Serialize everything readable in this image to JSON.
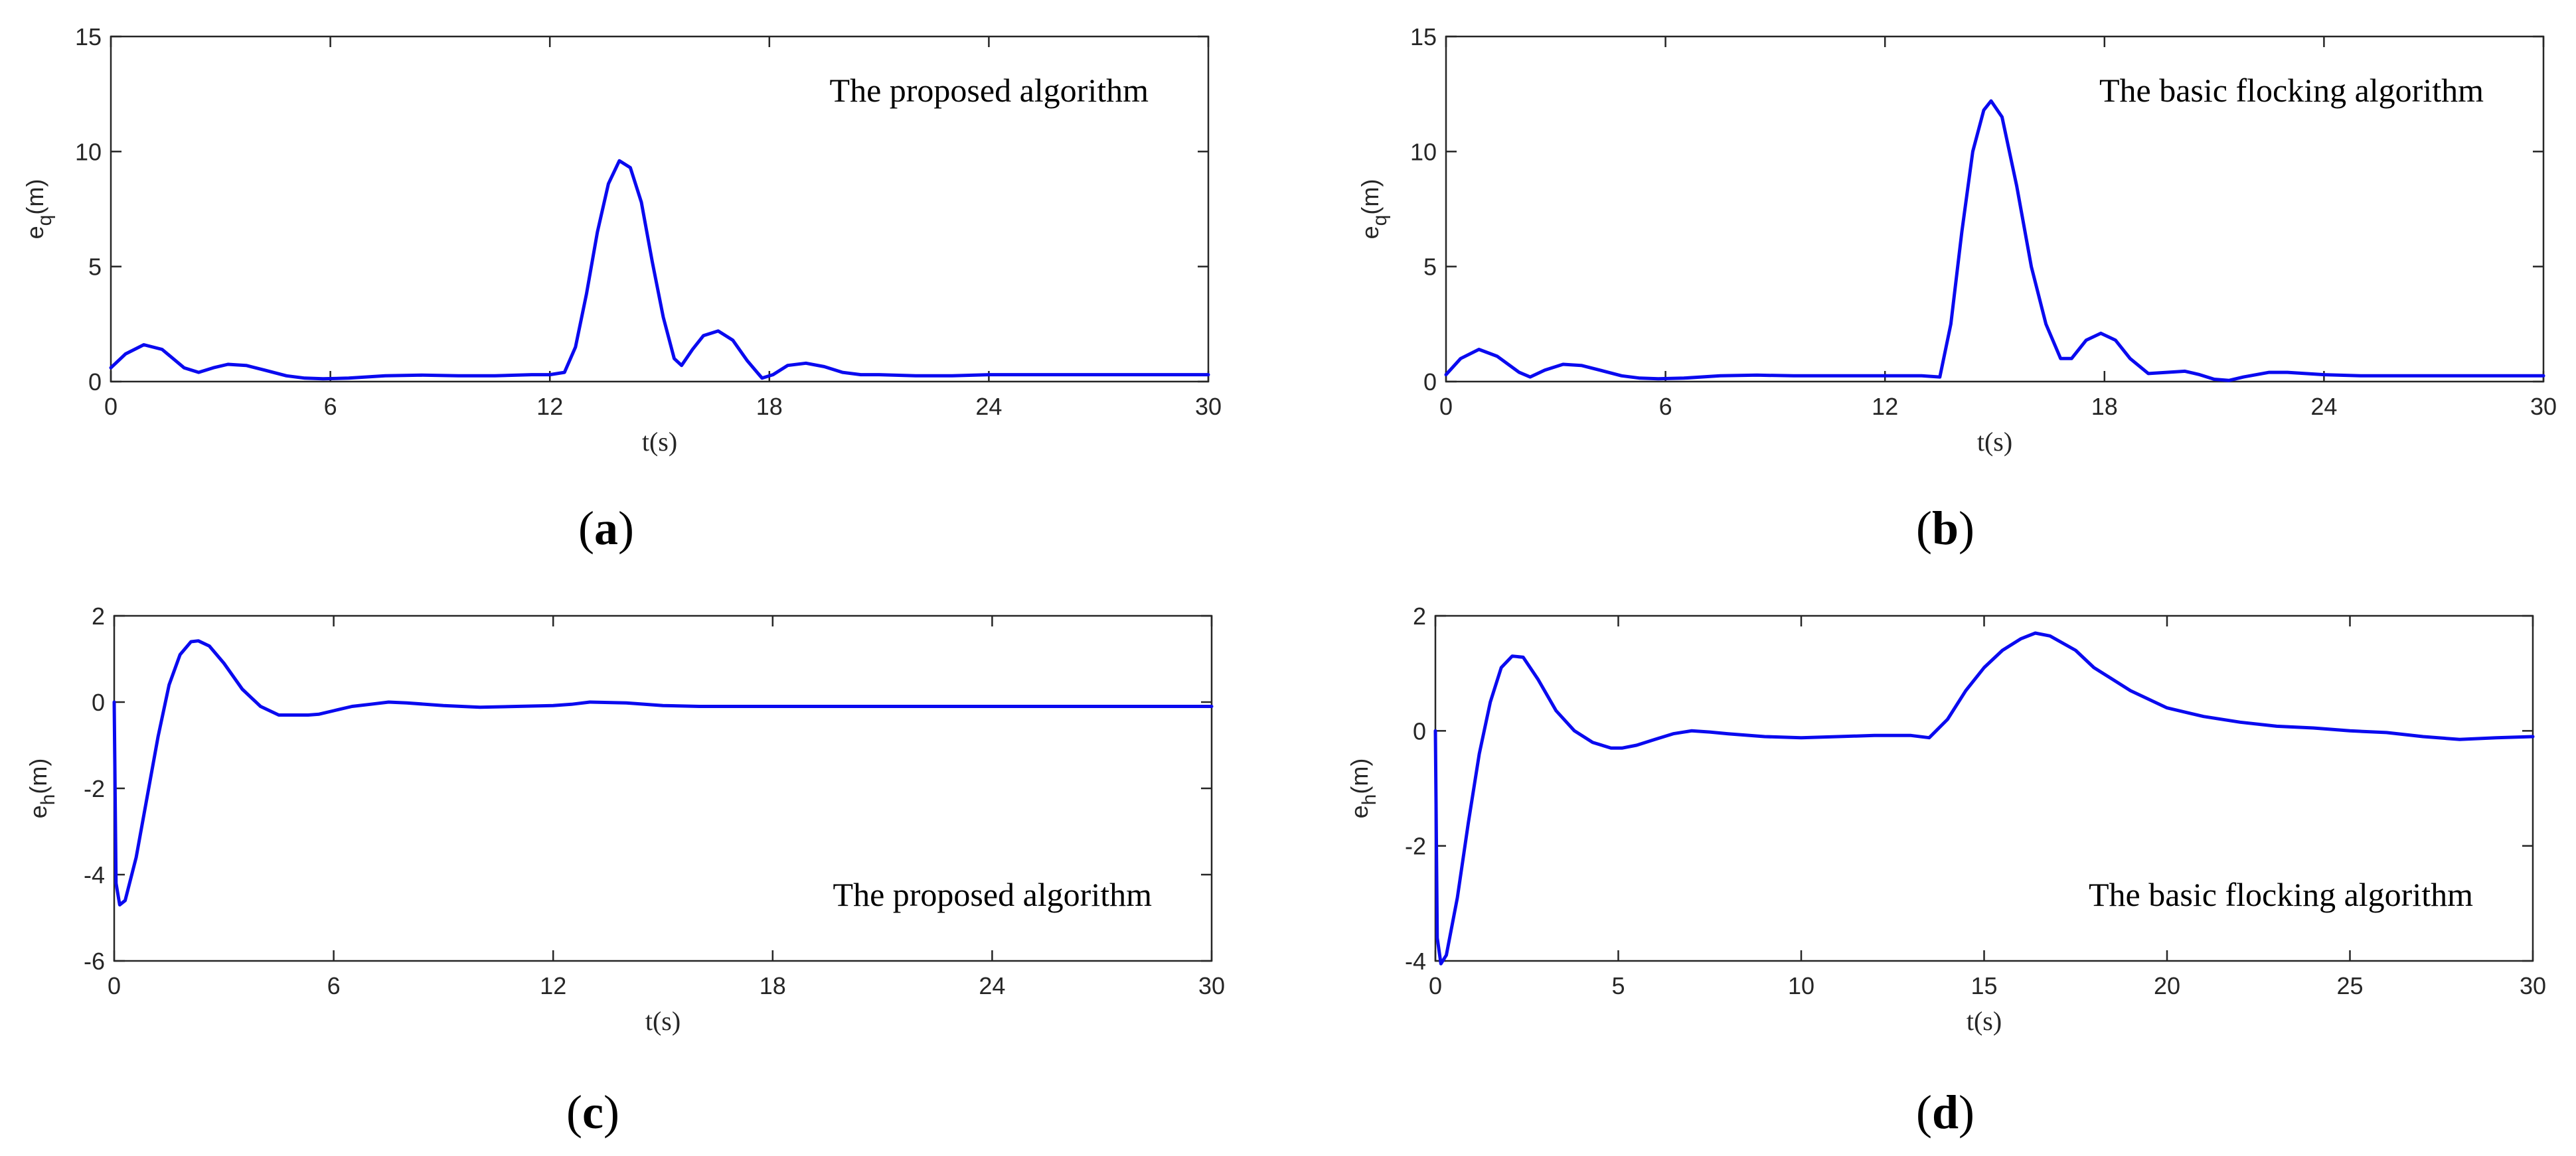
{
  "colors": {
    "series": "#0a0aef",
    "axes": "#262626",
    "background": "#ffffff"
  },
  "chart_data": [
    {
      "type": "line",
      "panel_label": "a",
      "annotation": "The proposed algorithm",
      "annotation_position": "top-right",
      "xlabel": "t(s)",
      "ylabel": {
        "base": "e",
        "sub": "q",
        "unit": "(m)"
      },
      "xlim": [
        0,
        30
      ],
      "ylim": [
        0,
        15
      ],
      "xticks": [
        0,
        6,
        12,
        18,
        24,
        30
      ],
      "yticks": [
        0,
        5,
        10,
        15
      ],
      "grid": false,
      "series": [
        {
          "x": [
            0,
            0.4,
            0.9,
            1.4,
            2.0,
            2.4,
            2.8,
            3.2,
            3.7,
            4.2,
            4.8,
            5.3,
            5.8,
            6.5,
            7.5,
            8.5,
            9.5,
            10.5,
            11.5,
            12.0,
            12.4,
            12.7,
            13.0,
            13.3,
            13.6,
            13.9,
            14.2,
            14.5,
            14.8,
            15.1,
            15.4,
            15.6,
            15.9,
            16.2,
            16.6,
            17.0,
            17.4,
            17.8,
            18.1,
            18.5,
            19.0,
            19.5,
            20.0,
            20.5,
            21.0,
            22.0,
            23.0,
            24.0,
            26.0,
            28.0,
            30.0
          ],
          "y": [
            0.6,
            1.2,
            1.6,
            1.4,
            0.6,
            0.4,
            0.6,
            0.75,
            0.7,
            0.5,
            0.25,
            0.15,
            0.12,
            0.15,
            0.25,
            0.28,
            0.25,
            0.25,
            0.3,
            0.3,
            0.4,
            1.5,
            3.8,
            6.5,
            8.6,
            9.6,
            9.3,
            7.8,
            5.2,
            2.8,
            1.0,
            0.7,
            1.4,
            2.0,
            2.2,
            1.8,
            0.9,
            0.15,
            0.3,
            0.7,
            0.8,
            0.65,
            0.4,
            0.3,
            0.3,
            0.25,
            0.25,
            0.3,
            0.3,
            0.3,
            0.3
          ]
        }
      ]
    },
    {
      "type": "line",
      "panel_label": "b",
      "annotation": "The basic flocking algorithm",
      "annotation_position": "top-right",
      "xlabel": "t(s)",
      "ylabel": {
        "base": "e",
        "sub": "q",
        "unit": "(m)"
      },
      "xlim": [
        0,
        30
      ],
      "ylim": [
        0,
        15
      ],
      "xticks": [
        0,
        6,
        12,
        18,
        24,
        30
      ],
      "yticks": [
        0,
        5,
        10,
        15
      ],
      "grid": false,
      "series": [
        {
          "x": [
            0,
            0.4,
            0.9,
            1.4,
            2.0,
            2.3,
            2.7,
            3.2,
            3.7,
            4.2,
            4.8,
            5.3,
            5.8,
            6.5,
            7.5,
            8.5,
            9.5,
            10.5,
            11.5,
            12.5,
            13.0,
            13.5,
            13.8,
            14.1,
            14.4,
            14.7,
            14.9,
            15.2,
            15.6,
            16.0,
            16.4,
            16.8,
            17.1,
            17.5,
            17.9,
            18.3,
            18.7,
            19.2,
            19.7,
            20.2,
            20.6,
            21.0,
            21.4,
            21.8,
            22.5,
            23.0,
            24.0,
            25.0,
            26.0,
            28.0,
            30.0
          ],
          "y": [
            0.3,
            1.0,
            1.4,
            1.1,
            0.4,
            0.2,
            0.5,
            0.75,
            0.7,
            0.5,
            0.25,
            0.15,
            0.12,
            0.15,
            0.25,
            0.28,
            0.25,
            0.25,
            0.25,
            0.25,
            0.25,
            0.2,
            2.5,
            6.5,
            10.0,
            11.8,
            12.2,
            11.5,
            8.5,
            5.0,
            2.5,
            1.0,
            1.0,
            1.8,
            2.1,
            1.8,
            1.0,
            0.35,
            0.4,
            0.45,
            0.3,
            0.1,
            0.05,
            0.2,
            0.4,
            0.4,
            0.3,
            0.25,
            0.25,
            0.25,
            0.25
          ]
        }
      ]
    },
    {
      "type": "line",
      "panel_label": "c",
      "annotation": "The proposed algorithm",
      "annotation_position": "bottom-right",
      "xlabel": "t(s)",
      "ylabel": {
        "base": "e",
        "sub": "h",
        "unit": "(m)"
      },
      "xlim": [
        0,
        30
      ],
      "ylim": [
        -6,
        2
      ],
      "xticks": [
        0,
        6,
        12,
        18,
        24,
        30
      ],
      "yticks": [
        -6,
        -4,
        -2,
        0,
        2
      ],
      "grid": false,
      "series": [
        {
          "x": [
            0,
            0.05,
            0.15,
            0.3,
            0.6,
            0.9,
            1.2,
            1.5,
            1.8,
            2.1,
            2.3,
            2.6,
            3.0,
            3.5,
            4.0,
            4.5,
            5.0,
            5.3,
            5.6,
            6.0,
            6.5,
            7.0,
            7.5,
            8.0,
            9.0,
            10.0,
            11.0,
            12.0,
            12.5,
            13.0,
            14.0,
            15.0,
            16.0,
            18.0,
            20.0,
            24.0,
            28.0,
            30.0
          ],
          "y": [
            0.0,
            -4.2,
            -4.7,
            -4.6,
            -3.6,
            -2.2,
            -0.8,
            0.4,
            1.1,
            1.4,
            1.42,
            1.3,
            0.9,
            0.3,
            -0.1,
            -0.3,
            -0.3,
            -0.3,
            -0.28,
            -0.2,
            -0.1,
            -0.05,
            0.0,
            -0.02,
            -0.08,
            -0.12,
            -0.1,
            -0.08,
            -0.05,
            0.0,
            -0.02,
            -0.08,
            -0.1,
            -0.1,
            -0.1,
            -0.1,
            -0.1,
            -0.1
          ]
        }
      ]
    },
    {
      "type": "line",
      "panel_label": "d",
      "annotation": "The basic flocking algorithm",
      "annotation_position": "bottom-right",
      "xlabel": "t(s)",
      "ylabel": {
        "base": "e",
        "sub": "h",
        "unit": "(m)"
      },
      "xlim": [
        0,
        30
      ],
      "ylim": [
        -4,
        2
      ],
      "xticks": [
        0,
        5,
        10,
        15,
        20,
        25,
        30
      ],
      "yticks": [
        -4,
        -2,
        0,
        2
      ],
      "grid": false,
      "series": [
        {
          "x": [
            0,
            0.05,
            0.15,
            0.3,
            0.6,
            0.9,
            1.2,
            1.5,
            1.8,
            2.1,
            2.4,
            2.8,
            3.3,
            3.8,
            4.3,
            4.8,
            5.1,
            5.5,
            6.0,
            6.5,
            7.0,
            7.5,
            8.0,
            9.0,
            10.0,
            11.0,
            12.0,
            13.0,
            13.5,
            14.0,
            14.5,
            15.0,
            15.5,
            16.0,
            16.4,
            16.8,
            17.5,
            18.0,
            19.0,
            20.0,
            21.0,
            22.0,
            23.0,
            24.0,
            25.0,
            26.0,
            27.0,
            28.0,
            29.0,
            30.0
          ],
          "y": [
            0.0,
            -3.6,
            -4.05,
            -3.9,
            -2.9,
            -1.6,
            -0.4,
            0.5,
            1.1,
            1.3,
            1.28,
            0.9,
            0.35,
            0.0,
            -0.2,
            -0.3,
            -0.3,
            -0.25,
            -0.15,
            -0.05,
            0.0,
            -0.02,
            -0.05,
            -0.1,
            -0.12,
            -0.1,
            -0.08,
            -0.08,
            -0.12,
            0.2,
            0.7,
            1.1,
            1.4,
            1.6,
            1.7,
            1.65,
            1.4,
            1.1,
            0.7,
            0.4,
            0.25,
            0.15,
            0.08,
            0.05,
            0.0,
            -0.03,
            -0.1,
            -0.15,
            -0.12,
            -0.1
          ]
        }
      ]
    }
  ]
}
